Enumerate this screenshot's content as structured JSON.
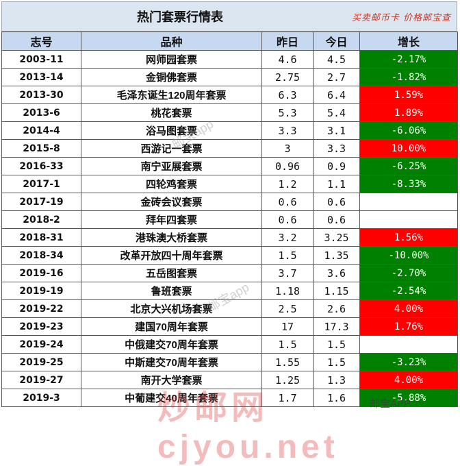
{
  "title": "热门套票行情表",
  "stamp": "买卖邮币卡 价格邮宝查",
  "headers": [
    "志号",
    "品种",
    "昨日",
    "今日",
    "增长"
  ],
  "rows": [
    {
      "code": "2003-11",
      "name": "网师园套票",
      "yesterday": "4.6",
      "today": "4.5",
      "change": "-2.17%",
      "trend": "down"
    },
    {
      "code": "2013-14",
      "name": "金铜佛套票",
      "yesterday": "2.75",
      "today": "2.7",
      "change": "-1.82%",
      "trend": "down"
    },
    {
      "code": "2013-30",
      "name": "毛泽东诞生120周年套票",
      "yesterday": "6.3",
      "today": "6.4",
      "change": "1.59%",
      "trend": "up"
    },
    {
      "code": "2013-6",
      "name": "桃花套票",
      "yesterday": "5.3",
      "today": "5.4",
      "change": "1.89%",
      "trend": "up"
    },
    {
      "code": "2014-4",
      "name": "浴马图套票",
      "yesterday": "3.3",
      "today": "3.1",
      "change": "-6.06%",
      "trend": "down"
    },
    {
      "code": "2015-8",
      "name": "西游记一套票",
      "yesterday": "3",
      "today": "3.3",
      "change": "10.00%",
      "trend": "up"
    },
    {
      "code": "2016-33",
      "name": "南宁亚展套票",
      "yesterday": "0.96",
      "today": "0.9",
      "change": "-6.25%",
      "trend": "down"
    },
    {
      "code": "2017-1",
      "name": "四轮鸡套票",
      "yesterday": "1.2",
      "today": "1.1",
      "change": "-8.33%",
      "trend": "down"
    },
    {
      "code": "2017-19",
      "name": "金砖会议套票",
      "yesterday": "0.6",
      "today": "0.6",
      "change": "",
      "trend": "flat"
    },
    {
      "code": "2018-2",
      "name": "拜年四套票",
      "yesterday": "0.6",
      "today": "0.6",
      "change": "",
      "trend": "flat"
    },
    {
      "code": "2018-31",
      "name": "港珠澳大桥套票",
      "yesterday": "3.2",
      "today": "3.25",
      "change": "1.56%",
      "trend": "up"
    },
    {
      "code": "2018-34",
      "name": "改革开放四十周年套票",
      "yesterday": "1.5",
      "today": "1.35",
      "change": "-10.00%",
      "trend": "down"
    },
    {
      "code": "2019-16",
      "name": "五岳图套票",
      "yesterday": "3.7",
      "today": "3.6",
      "change": "-2.70%",
      "trend": "down"
    },
    {
      "code": "2019-19",
      "name": "鲁班套票",
      "yesterday": "1.18",
      "today": "1.15",
      "change": "-2.54%",
      "trend": "down"
    },
    {
      "code": "2019-22",
      "name": "北京大兴机场套票",
      "yesterday": "2.5",
      "today": "2.6",
      "change": "4.00%",
      "trend": "up"
    },
    {
      "code": "2019-23",
      "name": "建国70周年套票",
      "yesterday": "17",
      "today": "17.3",
      "change": "1.76%",
      "trend": "up"
    },
    {
      "code": "2019-24",
      "name": "中俄建交70周年套票",
      "yesterday": "1.5",
      "today": "1.5",
      "change": "",
      "trend": "flat"
    },
    {
      "code": "2019-25",
      "name": "中斯建交70周年套票",
      "yesterday": "1.55",
      "today": "1.5",
      "change": "-3.23%",
      "trend": "down"
    },
    {
      "code": "2019-27",
      "name": "南开大学套票",
      "yesterday": "1.25",
      "today": "1.3",
      "change": "4.00%",
      "trend": "up"
    },
    {
      "code": "2019-3",
      "name": "中葡建交40周年套票",
      "yesterday": "1.7",
      "today": "1.6",
      "change": "-5.88%",
      "trend": "down"
    }
  ],
  "watermarks": {
    "diagonal": "邮宝app",
    "site": "炒邮网 cjyou.net",
    "app": "邮宝APP"
  },
  "colors": {
    "up": "#ff0000",
    "down": "#008000",
    "header_bg": "#c6d9f1",
    "title_bg": "#dce6f1"
  }
}
